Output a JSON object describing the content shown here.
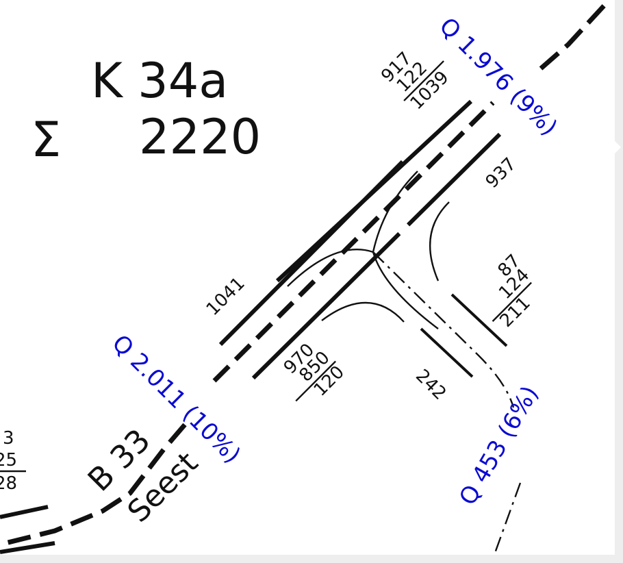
{
  "node": {
    "id_label": "K 34a",
    "sum_symbol": "Σ",
    "sum_value": "2220"
  },
  "colors": {
    "lines": "#111111",
    "flow_labels": "#0a0ad2",
    "background": "#ffffff"
  },
  "flow_labels": {
    "northeast": "Q 1.976 (9%)",
    "southwest": "Q 2.011 (10%)",
    "southeast": "Q 453 (6%)"
  },
  "road": {
    "number": "B 33",
    "name": "Seest"
  },
  "movement_counts": {
    "nw_approach": "1041",
    "ne_left": "937",
    "se_right": "242"
  },
  "fractions": {
    "ne_stack": {
      "top1": "917",
      "top2": "122",
      "bottom": "1039"
    },
    "sw_stack": {
      "top1": "970",
      "top2": "850",
      "bottom": "120"
    },
    "se_stack": {
      "top1": "87",
      "top2": "124",
      "bottom": "211"
    },
    "left_edge_stack": {
      "top1": "3",
      "top2": "25",
      "bottom": "28"
    }
  }
}
